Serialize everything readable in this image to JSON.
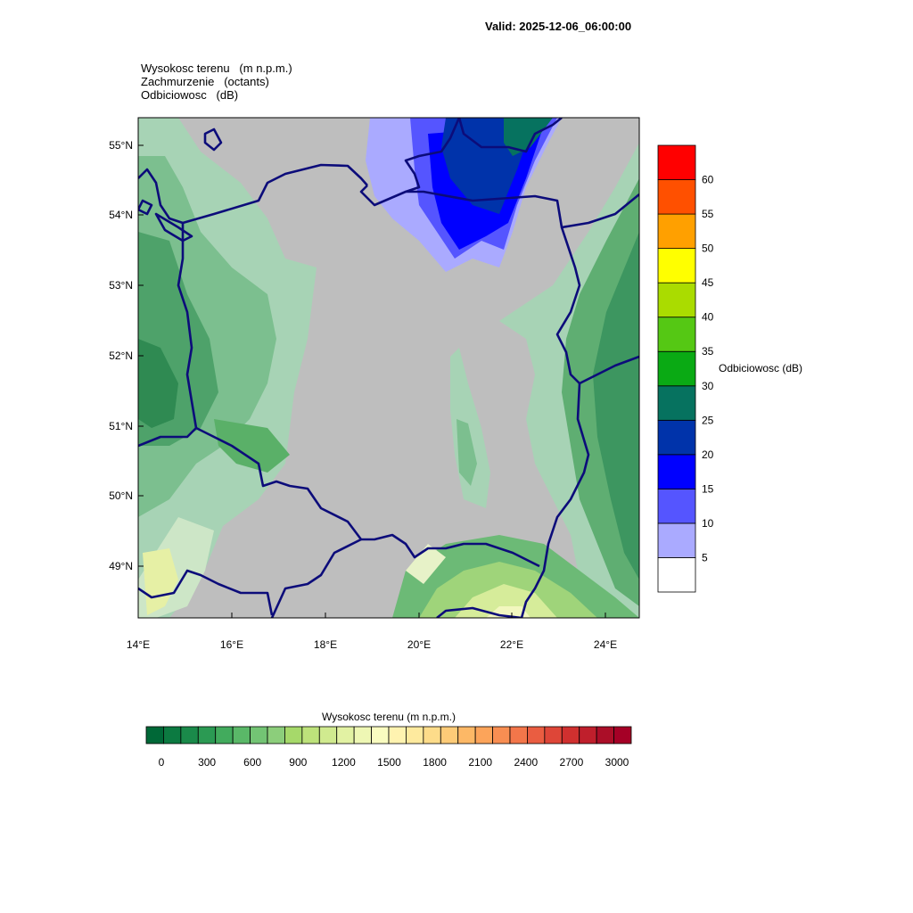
{
  "valid_time": "Valid: 2025-12-06_06:00:00",
  "field_titles": [
    "Wysokosc terenu   (m n.p.m.)",
    "Zachmurzenie   (octants)",
    "Odbiciowosc   (dB)"
  ],
  "map": {
    "lat_labels": [
      "55°N",
      "54°N",
      "53°N",
      "52°N",
      "51°N",
      "50°N",
      "49°N"
    ],
    "lon_labels": [
      "14°E",
      "16°E",
      "18°E",
      "20°E",
      "22°E",
      "24°E"
    ],
    "background_color": "#bebebe",
    "border_color": "#0c0c7a"
  },
  "reflectivity_legend": {
    "title": "Odbiciowosc  (dB)",
    "levels": [
      "5",
      "10",
      "15",
      "20",
      "25",
      "30",
      "35",
      "40",
      "45",
      "50",
      "55",
      "60"
    ],
    "colors": [
      "#ffffff",
      "#aaaaff",
      "#5555ff",
      "#0000ff",
      "#0033aa",
      "#06725f",
      "#0aaa14",
      "#55c814",
      "#aadc00",
      "#ffff00",
      "#ffa000",
      "#ff5000",
      "#ff0000"
    ]
  },
  "terrain_legend": {
    "title": "Wysokosc terenu  (m n.p.m.)",
    "labels": [
      "0",
      "300",
      "600",
      "900",
      "1200",
      "1500",
      "1800",
      "2100",
      "2400",
      "2700",
      "3000"
    ],
    "colors": [
      "#006837",
      "#0c7a41",
      "#1a8a4a",
      "#2b9a53",
      "#42ab5d",
      "#5ab868",
      "#73c474",
      "#8cce7b",
      "#a6d96a",
      "#bde27b",
      "#d0ea8f",
      "#e2f2a3",
      "#eef7b4",
      "#f9fcc0",
      "#fff3b0",
      "#feea9e",
      "#fddc8a",
      "#fdcb78",
      "#fdb866",
      "#fca45a",
      "#f88e52",
      "#f3764a",
      "#ea5d41",
      "#de4638",
      "#d0302f",
      "#bf1f2c",
      "#ab0e28",
      "#a50026"
    ]
  }
}
